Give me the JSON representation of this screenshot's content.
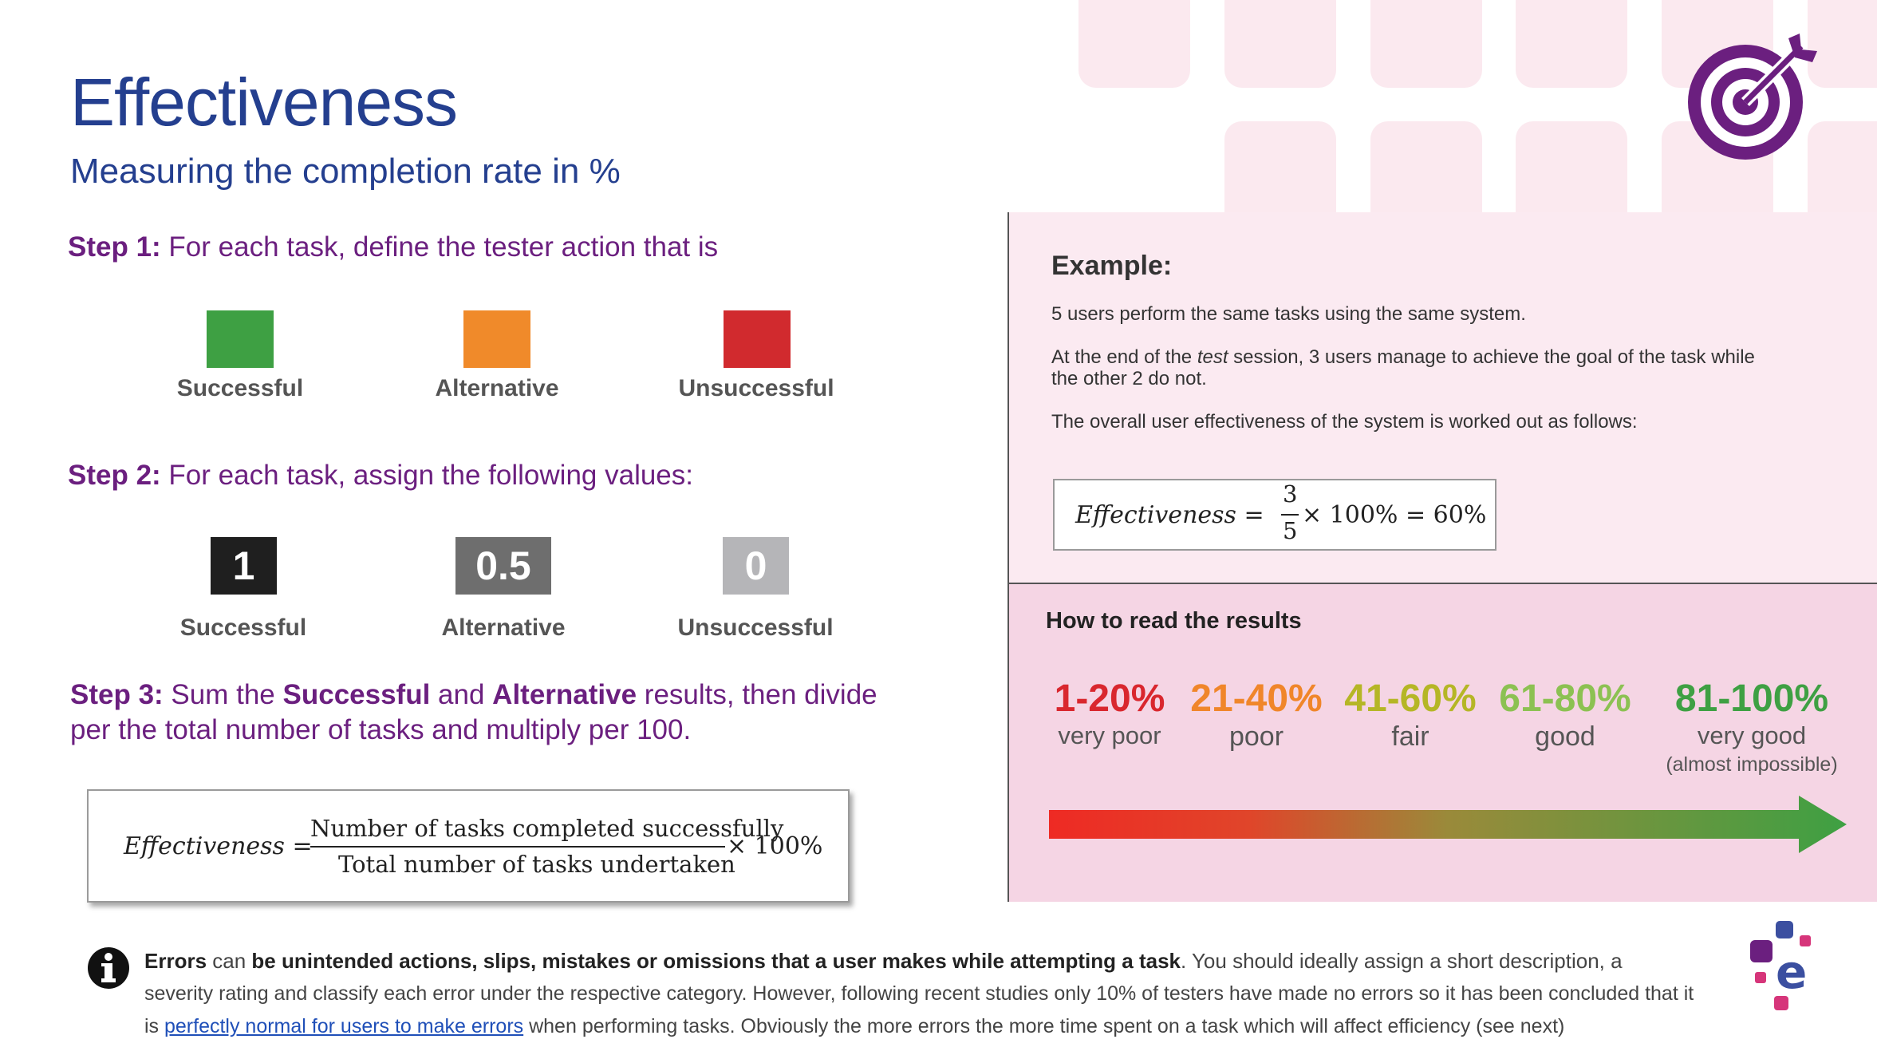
{
  "header": {
    "title": "Effectiveness",
    "subtitle": "Measuring the completion rate in %"
  },
  "step1": {
    "label": "Step 1:",
    "text": " For each task, define the tester action that is",
    "items": [
      {
        "label": "Successful",
        "color": "#3ea043"
      },
      {
        "label": "Alternative",
        "color": "#f08a2a"
      },
      {
        "label": "Unsuccessful",
        "color": "#d12a2e"
      }
    ]
  },
  "step2": {
    "label": "Step 2:",
    "text": " For each task, assign the following values:",
    "items": [
      {
        "value": "1",
        "label": "Successful",
        "color": "#1f1f1f"
      },
      {
        "value": "0.5",
        "label": "Alternative",
        "color": "#6e6e6e"
      },
      {
        "value": "0",
        "label": "Unsuccessful",
        "color": "#b5b5b8"
      }
    ]
  },
  "step3": {
    "label": "Step 3:",
    "text_a": " Sum the ",
    "bold_a": "Successful",
    "text_b": " and ",
    "bold_b": "Alternative",
    "text_c": " results, then divide",
    "line2": "per the total number of tasks and multiply per 100."
  },
  "formula": {
    "lhs": "Effectiveness =",
    "numerator": "Number of tasks completed successfully",
    "denominator": "Total number of tasks undertaken",
    "factor": "× 100%"
  },
  "example": {
    "heading": "Example:",
    "p1": "5 users perform the same tasks using the same system.",
    "p2a": "At the end of the ",
    "p2italic": "test",
    "p2b": " session, 3 users manage to achieve the goal of the task while",
    "p2c": "the other 2 do not.",
    "p3": "The overall user effectiveness of the system is worked out as follows:",
    "formula_lhs": "Effectiveness =",
    "formula_num": "3",
    "formula_den": "5",
    "formula_rhs": "× 100% = 60%"
  },
  "results": {
    "heading": "How to read the results",
    "ranges": [
      {
        "range": "1-20%",
        "label": "very poor",
        "color": "#d9272e"
      },
      {
        "range": "21-40%",
        "label": "poor",
        "color": "#f0862a"
      },
      {
        "range": "41-60%",
        "label": "fair",
        "color": "#b5b626"
      },
      {
        "range": "61-80%",
        "label": "good",
        "color": "#8cc152"
      },
      {
        "range": "81-100%",
        "label": "very good",
        "color": "#3ea043",
        "sub": "(almost impossible)"
      }
    ],
    "arrow_colors": [
      "#ee2a24",
      "#3ea043"
    ]
  },
  "note": {
    "b1": "Errors",
    "t1": " can ",
    "b2": "be unintended actions, slips, mistakes or omissions that a user makes while attempting a task",
    "t2": ". You should ideally assign a short description, a",
    "t3": "severity rating and classify each error under the respective category. However, following recent studies only 10% of testers have made no errors so it has been concluded that it",
    "t4": "is ",
    "link": "perfectly normal for users to make errors",
    "t5": " when performing tasks. Obviously the more errors the more time spent on a task which will affect efficiency (see next)"
  },
  "icons": {
    "target": "target-icon",
    "info": "info-icon",
    "brand": "brand-logo-icon",
    "brand_color": "#6b1f7f"
  }
}
